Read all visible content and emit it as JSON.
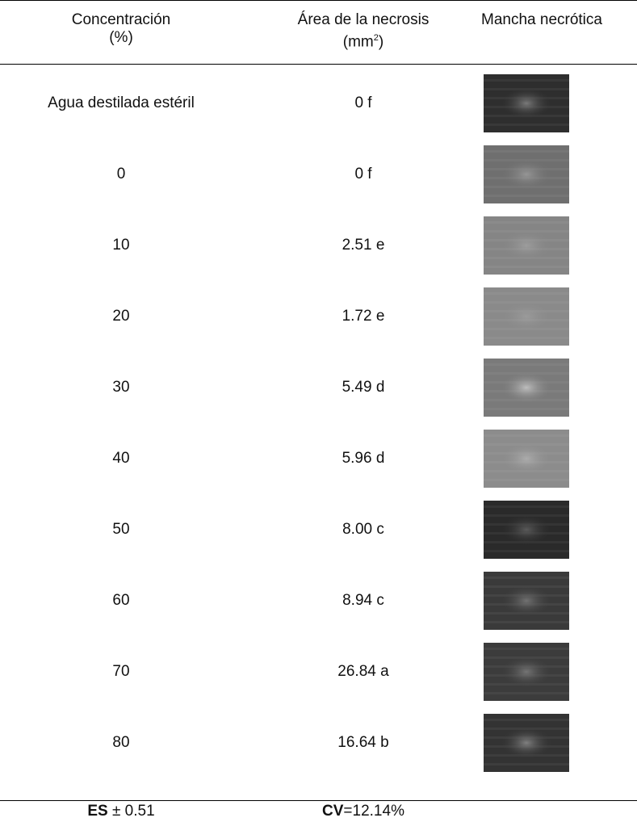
{
  "header": {
    "col1_line1": "Concentración",
    "col1_line2": "(%)",
    "col2_line1": "Área de la necrosis",
    "col2_unit": "(mm",
    "col2_sup": "2",
    "col2_close": ")",
    "col3": "Mancha necrótica"
  },
  "rows": [
    {
      "concentration": "Agua destilada estéril",
      "area": "0 f",
      "spot": {
        "bg": "#2e2e2e",
        "blob": "#9a9a9a",
        "blob_opacity": 0.7
      }
    },
    {
      "concentration": "0",
      "area": "0 f",
      "spot": {
        "bg": "#6f6f6f",
        "blob": "#b0b0b0",
        "blob_opacity": 0.6
      }
    },
    {
      "concentration": "10",
      "area": "2.51 e",
      "spot": {
        "bg": "#858585",
        "blob": "#b5b5b5",
        "blob_opacity": 0.5
      }
    },
    {
      "concentration": "20",
      "area": "1.72 e",
      "spot": {
        "bg": "#8a8a8a",
        "blob": "#b0b0b0",
        "blob_opacity": 0.45
      }
    },
    {
      "concentration": "30",
      "area": "5.49 d",
      "spot": {
        "bg": "#7a7a7a",
        "blob": "#cfcfcf",
        "blob_opacity": 0.8
      }
    },
    {
      "concentration": "40",
      "area": "5.96 d",
      "spot": {
        "bg": "#8c8c8c",
        "blob": "#c2c2c2",
        "blob_opacity": 0.6
      }
    },
    {
      "concentration": "50",
      "area": "8.00 c",
      "spot": {
        "bg": "#2a2a2a",
        "blob": "#6f6f6f",
        "blob_opacity": 0.7
      }
    },
    {
      "concentration": "60",
      "area": "8.94 c",
      "spot": {
        "bg": "#3a3a3a",
        "blob": "#8a8a8a",
        "blob_opacity": 0.7
      }
    },
    {
      "concentration": "70",
      "area": "26.84 a",
      "spot": {
        "bg": "#3c3c3c",
        "blob": "#8e8e8e",
        "blob_opacity": 0.7
      }
    },
    {
      "concentration": "80",
      "area": "16.64 b",
      "spot": {
        "bg": "#333333",
        "blob": "#9a9a9a",
        "blob_opacity": 0.75
      }
    }
  ],
  "footer": {
    "es_label": "ES",
    "es_value": " ± 0.51",
    "cv_label": "CV",
    "cv_value": "=12.14%"
  }
}
